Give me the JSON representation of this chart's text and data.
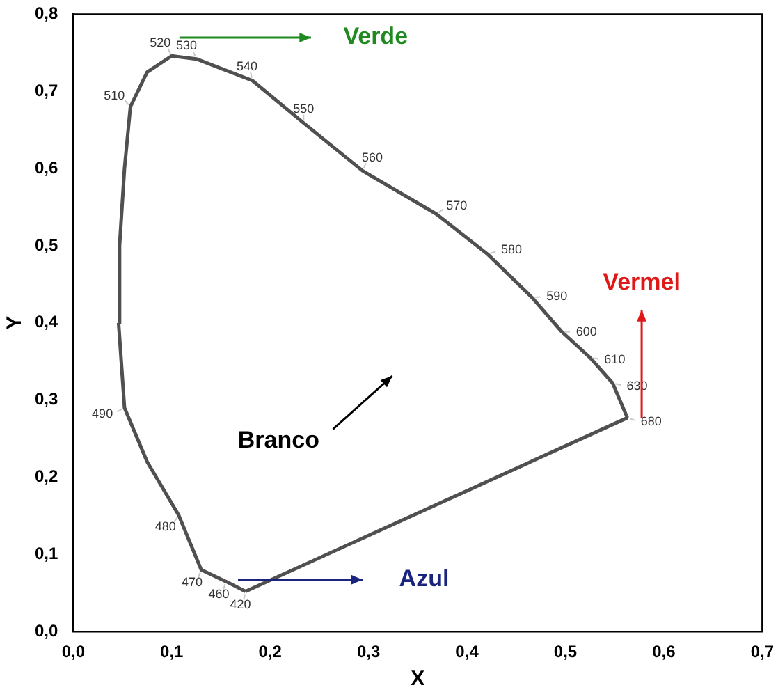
{
  "chart_data": {
    "type": "line",
    "xlabel": "X",
    "ylabel": "Y",
    "series": [
      {
        "color": "#505050",
        "x": [
          0.046,
          0.052,
          0.075,
          0.107,
          0.13,
          0.155,
          0.175
        ],
        "values": [
          0.4,
          0.29,
          0.22,
          0.151,
          0.08,
          0.065,
          0.052
        ]
      },
      {
        "color": "#505050",
        "x": [
          0.046,
          0.047,
          0.052,
          0.058,
          0.075,
          0.1,
          0.125,
          0.182,
          0.234,
          0.294,
          0.369,
          0.421,
          0.466,
          0.496,
          0.525,
          0.548,
          0.563
        ],
        "values": [
          0.4,
          0.5,
          0.6,
          0.68,
          0.725,
          0.746,
          0.742,
          0.714,
          0.659,
          0.597,
          0.541,
          0.489,
          0.433,
          0.389,
          0.355,
          0.322,
          0.277
        ]
      },
      {
        "color": "#505050",
        "x": [
          0.175,
          0.563
        ],
        "values": [
          0.052,
          0.277
        ]
      }
    ],
    "xlim": [
      0,
      0.7
    ],
    "ylim": [
      0,
      0.8
    ],
    "xticks": [
      {
        "value": 0,
        "label": "0,0"
      },
      {
        "value": 0.1,
        "label": "0,1"
      },
      {
        "value": 0.2,
        "label": "0,2"
      },
      {
        "value": 0.3,
        "label": "0,3"
      },
      {
        "value": 0.4,
        "label": "0,4"
      },
      {
        "value": 0.5,
        "label": "0,5"
      },
      {
        "value": 0.6,
        "label": "0,6"
      },
      {
        "value": 0.7,
        "label": "0,7"
      }
    ],
    "yticks": [
      {
        "value": 0,
        "label": "0,0"
      },
      {
        "value": 0.1,
        "label": "0,1"
      },
      {
        "value": 0.2,
        "label": "0,2"
      },
      {
        "value": 0.3,
        "label": "0,3"
      },
      {
        "value": 0.4,
        "label": "0,4"
      },
      {
        "value": 0.5,
        "label": "0,5"
      },
      {
        "value": 0.6,
        "label": "0,6"
      },
      {
        "value": 0.7,
        "label": "0,7"
      },
      {
        "value": 0.8,
        "label": "0,8"
      }
    ],
    "grid": false,
    "legend": false,
    "marker": "none",
    "line_style": "solid",
    "annotations": [
      {
        "text": "420",
        "x": 0.175,
        "y": 0.052
      },
      {
        "text": "460",
        "x": 0.155,
        "y": 0.065
      },
      {
        "text": "470",
        "x": 0.13,
        "y": 0.08
      },
      {
        "text": "480",
        "x": 0.107,
        "y": 0.151
      },
      {
        "text": "490",
        "x": 0.052,
        "y": 0.29
      },
      {
        "text": "510",
        "x": 0.058,
        "y": 0.68
      },
      {
        "text": "520",
        "x": 0.1,
        "y": 0.746
      },
      {
        "text": "530",
        "x": 0.125,
        "y": 0.742
      },
      {
        "text": "540",
        "x": 0.182,
        "y": 0.714
      },
      {
        "text": "550",
        "x": 0.234,
        "y": 0.659
      },
      {
        "text": "560",
        "x": 0.294,
        "y": 0.597
      },
      {
        "text": "570",
        "x": 0.369,
        "y": 0.541
      },
      {
        "text": "580",
        "x": 0.421,
        "y": 0.489
      },
      {
        "text": "590",
        "x": 0.466,
        "y": 0.433
      },
      {
        "text": "600",
        "x": 0.496,
        "y": 0.389
      },
      {
        "text": "610",
        "x": 0.525,
        "y": 0.355
      },
      {
        "text": "630",
        "x": 0.548,
        "y": 0.322
      },
      {
        "text": "680",
        "x": 0.563,
        "y": 0.277
      },
      "Verde",
      "Vermel",
      "Azul",
      "Branco"
    ]
  }
}
